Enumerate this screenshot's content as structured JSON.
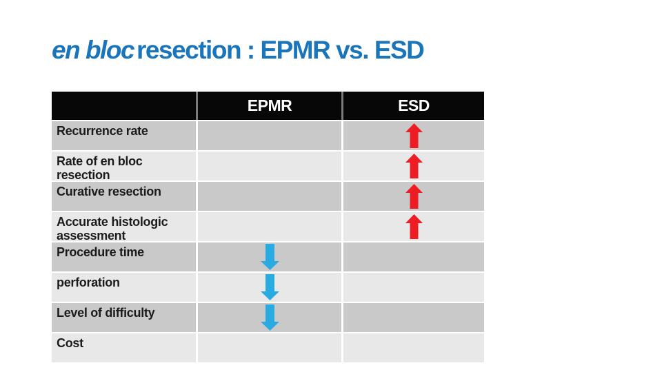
{
  "title": {
    "italic": "en bloc",
    "rest": "resection : EPMR vs. ESD",
    "color": "#1b75bb"
  },
  "table": {
    "columns": [
      "",
      "EPMR",
      "ESD"
    ],
    "rows": [
      {
        "label": "Recurrence rate",
        "epmr": "",
        "esd": "up-arrow"
      },
      {
        "label": "Rate of en bloc resection",
        "epmr": "",
        "esd": "up-arrow"
      },
      {
        "label": "Curative resection",
        "epmr": "",
        "esd": "up-arrow"
      },
      {
        "label": "Accurate histologic assessment",
        "epmr": "",
        "esd": "up-arrow"
      },
      {
        "label": "Procedure time",
        "epmr": "down-arrow",
        "esd": ""
      },
      {
        "label": "perforation",
        "epmr": "down-arrow",
        "esd": ""
      },
      {
        "label": "Level of difficulty",
        "epmr": "down-arrow",
        "esd": ""
      },
      {
        "label": "Cost",
        "epmr": "",
        "esd": ""
      }
    ],
    "colors": {
      "header_bg": "#070707",
      "header_text": "#ffffff",
      "header_divider": "#7a7a7a",
      "row_dark": "#c9c9c9",
      "row_light": "#e8e8e8",
      "label_text": "#1b1b1b",
      "up_arrow": "#ee1c23",
      "down_arrow": "#29abe2",
      "separator": "#ffffff"
    }
  }
}
